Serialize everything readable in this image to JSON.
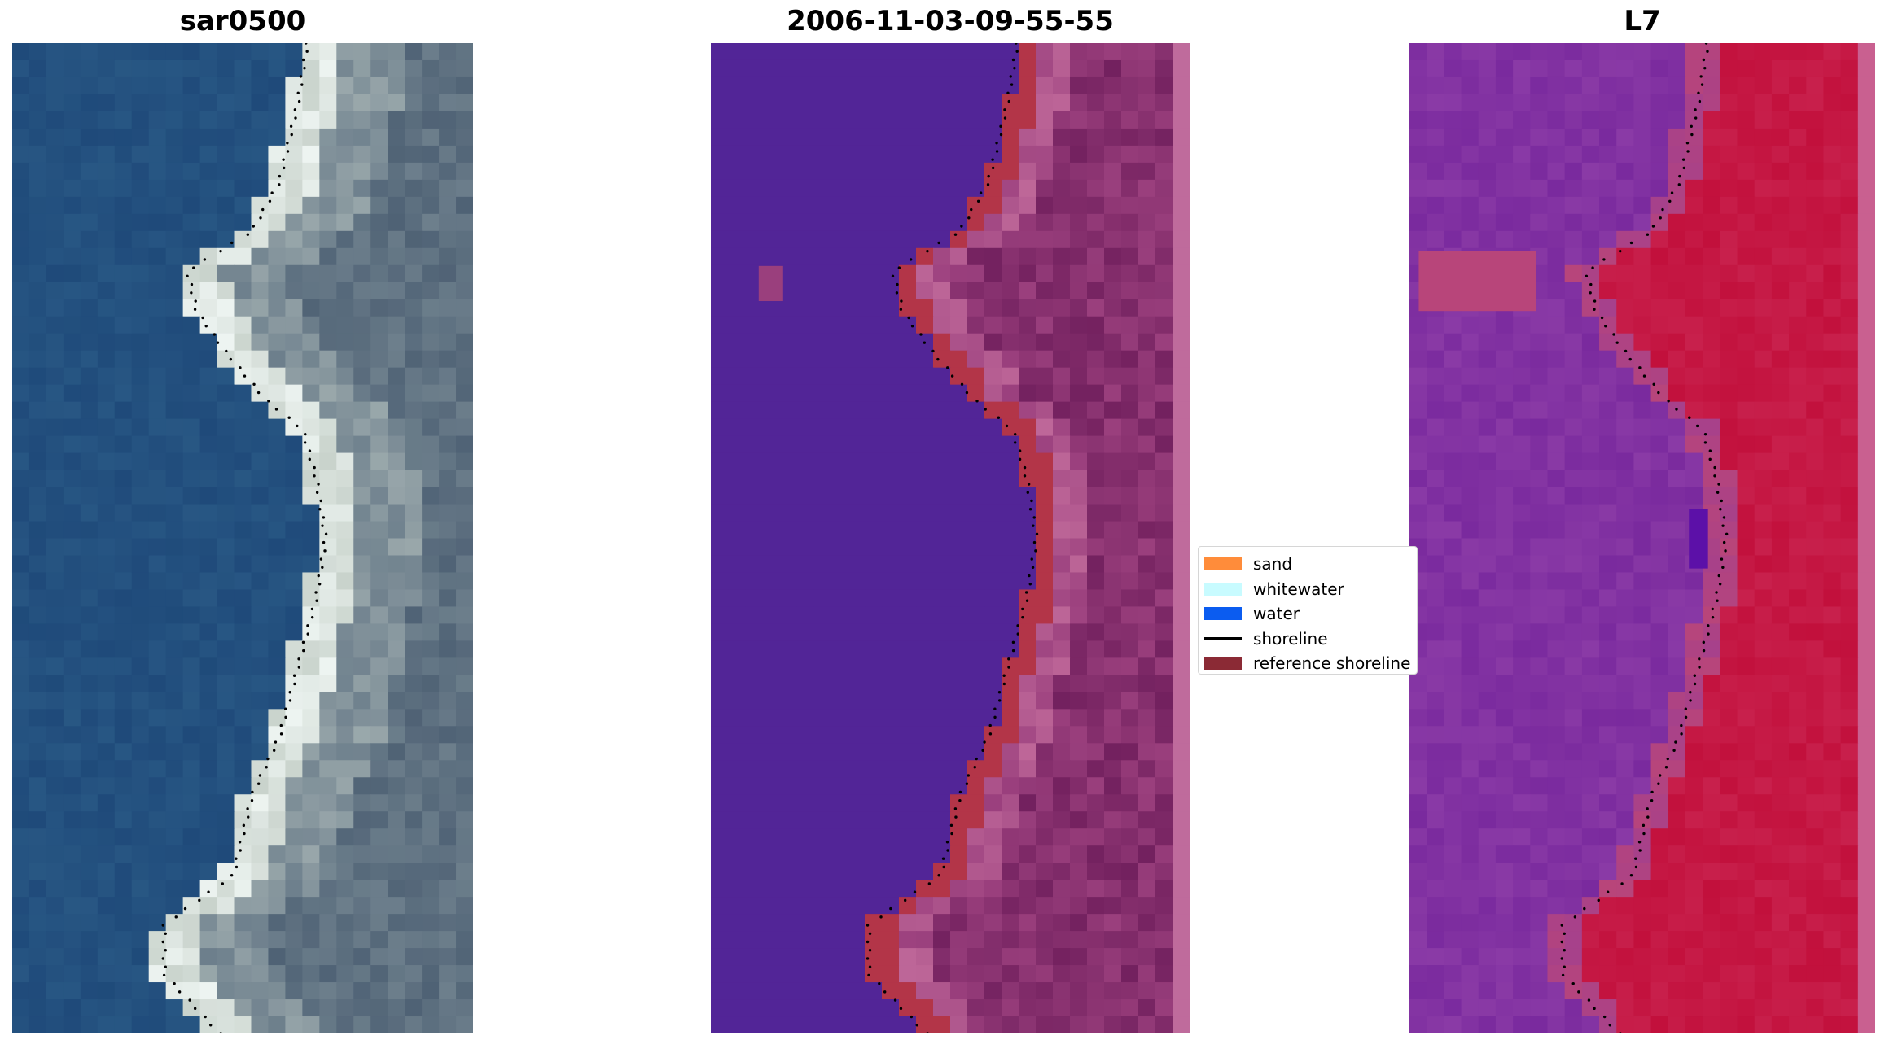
{
  "panels": [
    {
      "title": "sar0500",
      "colors": {
        "sea": "#1f4a7a",
        "seaVar": "#2a5a86",
        "sand": "#c9d3cc",
        "white": "#eef5f2",
        "land": "#6d7f8c",
        "landDark": "#4f6275"
      }
    },
    {
      "title": "2006-11-03-09-55-55",
      "colors": {
        "water": "#522597",
        "ref": "#b33548",
        "land": "#9a3f7d",
        "landDark": "#73215f",
        "landLight": "#c0699a",
        "edge": "#bf6b9c"
      }
    },
    {
      "title": "L7",
      "colors": {
        "water": "#8a3aa6",
        "waterVar": "#7a2a9e",
        "bright": "#c2103c",
        "brightVar": "#c8204c",
        "mid": "#b8457a",
        "dark": "#5c10a8",
        "edge": "#c96090"
      }
    }
  ],
  "legend": {
    "items": [
      {
        "label": "sand",
        "color": "#ff8c3a",
        "kind": "patch"
      },
      {
        "label": "whitewater",
        "color": "#c8fbff",
        "kind": "patch"
      },
      {
        "label": "water",
        "color": "#0b5cf0",
        "kind": "patch"
      },
      {
        "label": "shoreline",
        "color": "#000000",
        "kind": "line"
      },
      {
        "label": "reference shoreline",
        "color": "#8b2a35",
        "kind": "patch"
      }
    ]
  }
}
